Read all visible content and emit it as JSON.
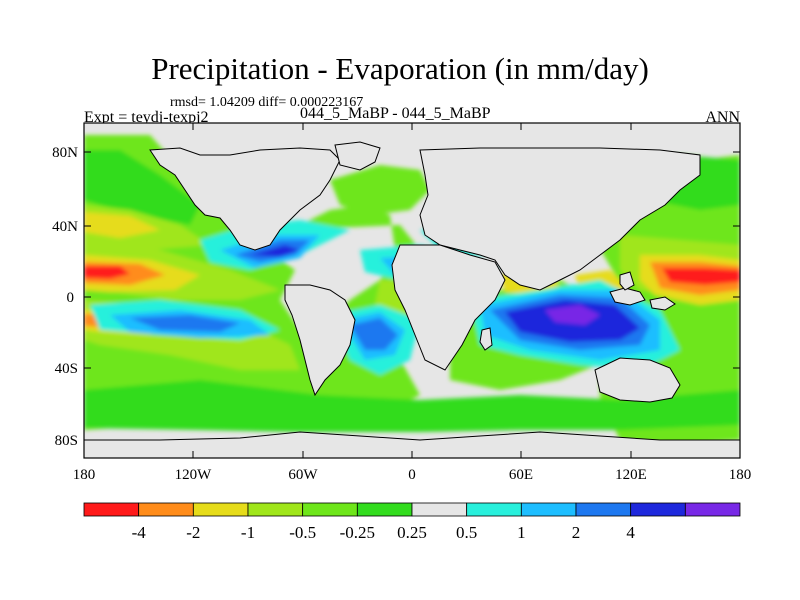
{
  "title": "Precipitation - Evaporation (in mm/day)",
  "stats_line": "rmsd= 1.04209  diff= 0.000223167",
  "experiment_label": "Expt = teydj-texpj2",
  "case_label": "044_5_MaBP - 044_5_MaBP",
  "season_label": "ANN",
  "map": {
    "projection": "cylindrical-equidistant",
    "lon_range": [
      -180,
      180
    ],
    "lat_range": [
      -90,
      90
    ],
    "x_ticks": [
      "180",
      "120W",
      "60W",
      "0",
      "60E",
      "120E",
      "180"
    ],
    "y_ticks": [
      "80N",
      "40N",
      "0",
      "40S",
      "80S"
    ],
    "land_color": "#e6e6e6",
    "ocean_field": "P-E anomaly, contour filled"
  },
  "colorbar": {
    "colors": [
      "#ff1a1a",
      "#ff8c1a",
      "#e6dc1a",
      "#a0e61a",
      "#6ee61a",
      "#32dc1e",
      "#e6e6e6",
      "#28f0dc",
      "#1ebeff",
      "#1e78f0",
      "#1e28dc",
      "#7828e6"
    ],
    "labels": [
      "-4",
      "-2",
      "-1",
      "-0.5",
      "-0.25",
      "0.25",
      "0.5",
      "1",
      "2",
      "4"
    ]
  }
}
